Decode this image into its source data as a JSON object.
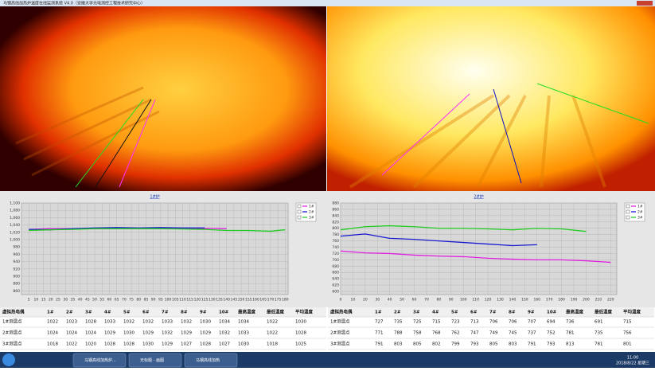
{
  "title_bar": "马钢高线加热炉温度在线监测系统 V4.0（安徽大学光电测控工程技术研究中心）",
  "chart_data": [
    {
      "type": "line",
      "title": "1#炉",
      "x": [
        5,
        20,
        35,
        50,
        65,
        80,
        95,
        110,
        125,
        140,
        155,
        170,
        180
      ],
      "xlim": [
        0,
        182
      ],
      "xticks": [
        5,
        10,
        15,
        20,
        25,
        30,
        35,
        40,
        45,
        50,
        55,
        60,
        65,
        70,
        75,
        80,
        85,
        90,
        95,
        100,
        105,
        110,
        115,
        120,
        125,
        130,
        135,
        140,
        145,
        150,
        155,
        160,
        165,
        170,
        175,
        180
      ],
      "ylim": [
        850,
        1100
      ],
      "yticks": [
        860,
        880,
        900,
        920,
        940,
        960,
        980,
        {
          "value": 1000,
          "label": "1,000"
        },
        {
          "value": 1020,
          "label": "1,020"
        },
        {
          "value": 1040,
          "label": "1,040"
        },
        {
          "value": 1060,
          "label": "1,060"
        },
        {
          "value": 1080,
          "label": "1,080"
        },
        {
          "value": 1100,
          "label": "1,100"
        }
      ],
      "grid": true,
      "series": [
        {
          "name": "1#",
          "color": "#e020e0",
          "values": [
            1028,
            1030,
            1030,
            1030,
            1031,
            1031,
            1031,
            1030,
            1031,
            1030,
            null,
            null,
            null
          ]
        },
        {
          "name": "2#",
          "color": "#1a1ad0",
          "values": [
            1028,
            1027,
            1030,
            1032,
            1033,
            1032,
            1033,
            1032,
            1032,
            null,
            null,
            null,
            null
          ]
        },
        {
          "name": "3#",
          "color": "#22cc22",
          "values": [
            1025,
            1027,
            1028,
            1030,
            1030,
            1030,
            1030,
            1029,
            1028,
            1025,
            1025,
            1023,
            1027
          ]
        }
      ]
    },
    {
      "type": "line",
      "title": "2#炉",
      "x": [
        0,
        20,
        40,
        60,
        80,
        100,
        120,
        140,
        160,
        180,
        200,
        220
      ],
      "xlim": [
        0,
        225
      ],
      "xticks": [
        0,
        10,
        20,
        30,
        40,
        50,
        60,
        70,
        80,
        90,
        100,
        110,
        120,
        130,
        140,
        150,
        160,
        170,
        180,
        190,
        200,
        210,
        220
      ],
      "ylim": [
        590,
        880
      ],
      "yticks": [
        600,
        620,
        640,
        660,
        680,
        700,
        720,
        740,
        760,
        780,
        800,
        820,
        840,
        860,
        880
      ],
      "grid": true,
      "series": [
        {
          "name": "1#",
          "color": "#e020e0",
          "values": [
            728,
            722,
            720,
            715,
            712,
            710,
            705,
            702,
            700,
            700,
            697,
            692
          ]
        },
        {
          "name": "2#",
          "color": "#1a1ad0",
          "values": [
            775,
            782,
            768,
            765,
            760,
            755,
            750,
            745,
            748,
            null,
            null,
            null
          ]
        },
        {
          "name": "3#",
          "color": "#22cc22",
          "values": [
            795,
            805,
            808,
            805,
            800,
            800,
            798,
            795,
            800,
            798,
            790,
            null
          ]
        }
      ]
    }
  ],
  "tables": [
    {
      "header": [
        "虚拟热电偶",
        "1#",
        "2#",
        "3#",
        "4#",
        "5#",
        "6#",
        "7#",
        "8#",
        "9#",
        "10#",
        "最高温度",
        "最低温度",
        "平均温度"
      ],
      "rows": [
        [
          "1#测温点",
          1022,
          1023,
          1028,
          1033,
          1032,
          1032,
          1033,
          1032,
          1030,
          1034,
          1034,
          1022,
          1030
        ],
        [
          "2#测温点",
          1024,
          1024,
          1024,
          1029,
          1030,
          1029,
          1032,
          1029,
          1029,
          1032,
          1033,
          1022,
          1028
        ],
        [
          "3#测温点",
          1018,
          1022,
          1020,
          1028,
          1028,
          1030,
          1029,
          1027,
          1028,
          1027,
          1030,
          1018,
          1025
        ]
      ]
    },
    {
      "header": [
        "虚拟热电偶",
        "1#",
        "2#",
        "3#",
        "4#",
        "5#",
        "6#",
        "7#",
        "8#",
        "9#",
        "10#",
        "最高温度",
        "最低温度",
        "平均温度"
      ],
      "rows": [
        [
          "1#测温点",
          727,
          735,
          725,
          715,
          723,
          713,
          706,
          706,
          707,
          694,
          736,
          691,
          715
        ],
        [
          "2#测温点",
          771,
          788,
          758,
          768,
          762,
          747,
          749,
          745,
          737,
          752,
          781,
          735,
          756
        ],
        [
          "3#测温点",
          791,
          803,
          805,
          802,
          799,
          793,
          805,
          803,
          791,
          793,
          813,
          781,
          801
        ]
      ]
    }
  ],
  "taskbar": {
    "items": [
      "马钢高线加热炉...",
      "无标题 - 画图",
      "马钢高线加热"
    ],
    "time": "11:00",
    "date": "2018/8/22 星期三"
  }
}
